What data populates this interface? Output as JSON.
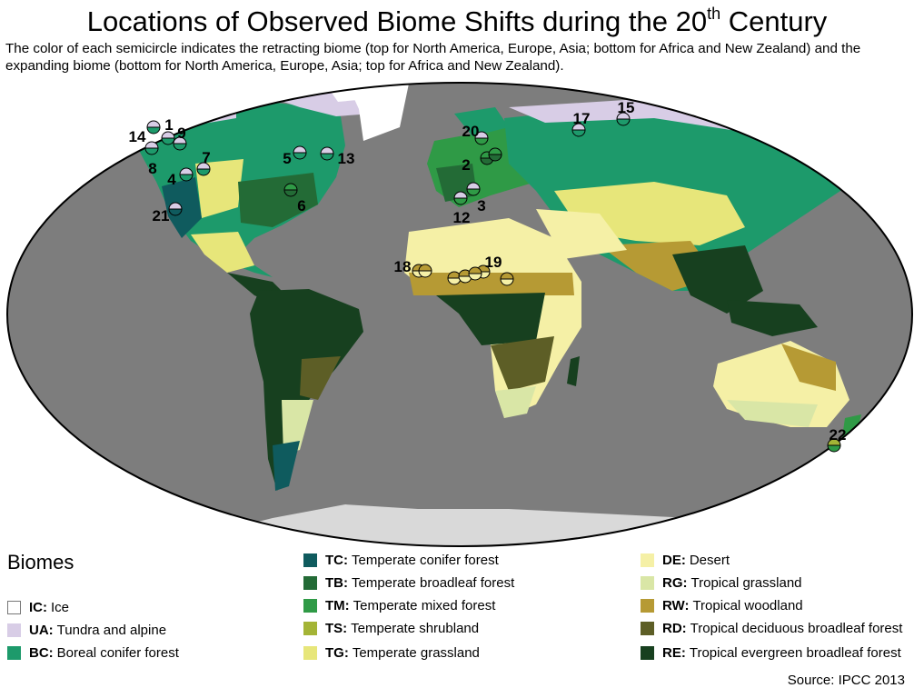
{
  "title": {
    "main": "Locations of Observed Biome Shifts during the 20",
    "sup": "th",
    "tail": " Century"
  },
  "subtitle": "The color of each semicircle indicates the retracting biome (top for North America, Europe, Asia; bottom for Africa and New Zealand) and the expanding biome (bottom for North America, Europe, Asia; top for Africa and New Zealand).",
  "legend": {
    "title": "Biomes",
    "items": [
      {
        "code": "IC:",
        "name": "Ice",
        "color": "#ffffff"
      },
      {
        "code": "UA:",
        "name": "Tundra and alpine",
        "color": "#d8cde6"
      },
      {
        "code": "BC:",
        "name": "Boreal conifer forest",
        "color": "#1d9a6b"
      },
      {
        "code": "TC:",
        "name": "Temperate conifer forest",
        "color": "#0f5b5e"
      },
      {
        "code": "TB:",
        "name": "Temperate broadleaf forest",
        "color": "#236b36"
      },
      {
        "code": "TM:",
        "name": "Temperate mixed forest",
        "color": "#2f9a46"
      },
      {
        "code": "TS:",
        "name": "Temperate shrubland",
        "color": "#a4b436"
      },
      {
        "code": "TG:",
        "name": "Temperate grassland",
        "color": "#e7e67a"
      },
      {
        "code": "DE:",
        "name": "Desert",
        "color": "#f5f0a6"
      },
      {
        "code": "RG:",
        "name": "Tropical grassland",
        "color": "#d9e6a6"
      },
      {
        "code": "RW:",
        "name": "Tropical woodland",
        "color": "#b69a34"
      },
      {
        "code": "RD:",
        "name": "Tropical deciduous broadleaf forest",
        "color": "#5d5e26"
      },
      {
        "code": "RE:",
        "name": "Tropical evergreen broadleaf forest",
        "color": "#17401f"
      }
    ]
  },
  "sites": [
    {
      "label": "1",
      "top": "UA",
      "bottom": "BC"
    },
    {
      "label": "2",
      "top": "TM",
      "bottom": "TB"
    },
    {
      "label": "3",
      "top": "UA",
      "bottom": "TM"
    },
    {
      "label": "4",
      "top": "UA",
      "bottom": "BC"
    },
    {
      "label": "5",
      "top": "UA",
      "bottom": "BC"
    },
    {
      "label": "6",
      "top": "TM",
      "bottom": "TB"
    },
    {
      "label": "7",
      "top": "UA",
      "bottom": "BC"
    },
    {
      "label": "8",
      "top": "UA",
      "bottom": "BC"
    },
    {
      "label": "9",
      "top": "UA",
      "bottom": "BC"
    },
    {
      "label": "12",
      "top": "UA",
      "bottom": "TM"
    },
    {
      "label": "13",
      "top": "UA",
      "bottom": "BC"
    },
    {
      "label": "14",
      "top": "UA",
      "bottom": "BC"
    },
    {
      "label": "15",
      "top": "UA",
      "bottom": "BC"
    },
    {
      "label": "17",
      "top": "UA",
      "bottom": "BC"
    },
    {
      "label": "18",
      "top": "RW",
      "bottom": "DE"
    },
    {
      "label": "19",
      "top": "RW",
      "bottom": "DE"
    },
    {
      "label": "20",
      "top": "UA",
      "bottom": "TM"
    },
    {
      "label": "21",
      "top": "UA",
      "bottom": "TC"
    },
    {
      "label": "22",
      "top": "TS",
      "bottom": "TM"
    }
  ],
  "unlabeled_sites": [
    {
      "top": "RW",
      "bottom": "DE"
    },
    {
      "top": "RW",
      "bottom": "DE"
    },
    {
      "top": "RW",
      "bottom": "DE"
    },
    {
      "top": "RW",
      "bottom": "DE"
    },
    {
      "top": "RW",
      "bottom": "DE"
    },
    {
      "top": "TM",
      "bottom": "TB"
    }
  ],
  "source": "Source: IPCC 2013"
}
